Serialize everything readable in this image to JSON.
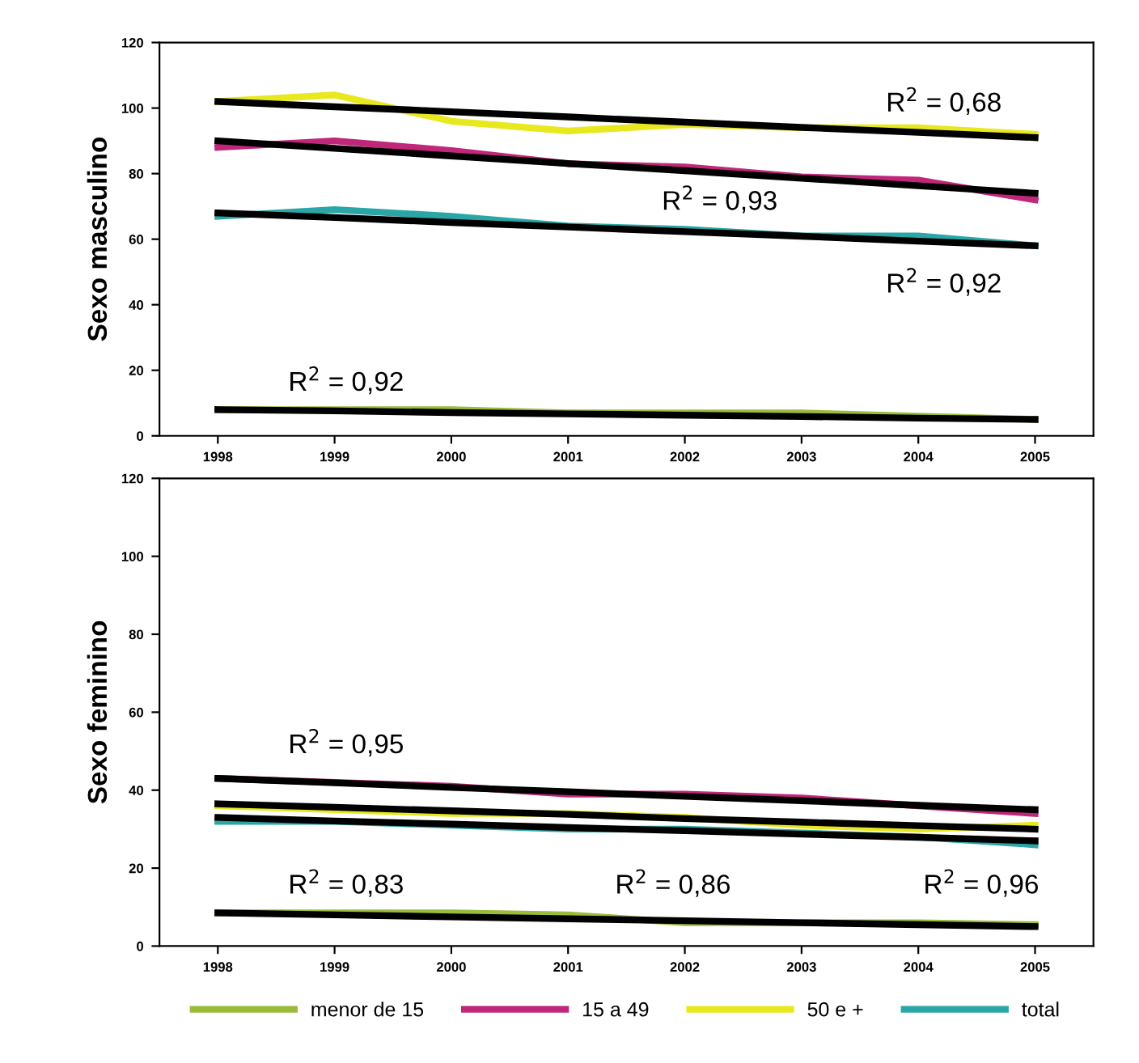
{
  "chart_data": [
    {
      "type": "line",
      "ylabel": "Sexo masculino",
      "categories": [
        "1998",
        "1999",
        "2000",
        "2001",
        "2002",
        "2003",
        "2004",
        "2005"
      ],
      "ylim": [
        0,
        120
      ],
      "yticks": [
        0,
        20,
        40,
        60,
        80,
        100,
        120
      ],
      "legend": false,
      "grid": false,
      "marker": "none",
      "series": [
        {
          "color": "#9bbb3b",
          "values": [
            8,
            8,
            8,
            7,
            7,
            7,
            6,
            5
          ]
        },
        {
          "color": "#c0267a",
          "values": [
            88,
            90,
            87,
            83,
            82,
            79,
            78,
            72
          ]
        },
        {
          "color": "#e8e81e",
          "values": [
            102,
            104,
            96,
            93,
            95,
            94,
            94,
            92
          ]
        },
        {
          "color": "#2aa6a6",
          "values": [
            67,
            69,
            67,
            64,
            63,
            61,
            61,
            58
          ]
        },
        {
          "color": "#000000",
          "values": [
            8,
            7.6,
            7.1,
            6.7,
            6.3,
            5.9,
            5.4,
            5
          ]
        },
        {
          "color": "#000000",
          "values": [
            90,
            87.7,
            85.4,
            83.1,
            80.9,
            78.6,
            76.3,
            74
          ]
        },
        {
          "color": "#000000",
          "values": [
            102,
            100.4,
            98.9,
            97.3,
            95.7,
            94.1,
            92.6,
            91
          ]
        },
        {
          "color": "#000000",
          "values": [
            68,
            66.6,
            65.1,
            63.7,
            62.3,
            60.9,
            59.4,
            58
          ]
        }
      ],
      "annotations": [
        "R$^{2}$ = 0,68",
        "R$^{2}$ = 0,93",
        "R$^{2}$ = 0,92",
        "R$^{2}$ = 0,92"
      ]
    },
    {
      "type": "line",
      "ylabel": "Sexo feminino",
      "categories": [
        "1998",
        "1999",
        "2000",
        "2001",
        "2002",
        "2003",
        "2004",
        "2005"
      ],
      "ylim": [
        0,
        120
      ],
      "yticks": [
        0,
        20,
        40,
        60,
        80,
        100,
        120
      ],
      "legend": "bottom",
      "grid": false,
      "marker": "none",
      "series": [
        {
          "name": "menor de 15",
          "color": "#9bbb3b",
          "values": [
            8.5,
            8.5,
            8.5,
            8,
            6,
            6,
            6,
            5.5
          ]
        },
        {
          "name": "15 a 49",
          "color": "#c0267a",
          "values": [
            43,
            42,
            41,
            39,
            39,
            38,
            36,
            34
          ]
        },
        {
          "name": "50 e +",
          "color": "#e8e81e",
          "values": [
            36,
            35,
            34,
            34,
            33,
            31,
            30,
            31
          ]
        },
        {
          "name": "total",
          "color": "#2aa6a6",
          "values": [
            32,
            32,
            31,
            30,
            30,
            29,
            28,
            26
          ]
        },
        {
          "color": "#000000",
          "values": [
            8.5,
            8,
            7.5,
            7,
            6.5,
            6,
            5.5,
            5
          ]
        },
        {
          "color": "#000000",
          "values": [
            43,
            41.9,
            40.7,
            39.6,
            38.4,
            37.3,
            36.1,
            35
          ]
        },
        {
          "color": "#000000",
          "values": [
            36.5,
            35.6,
            34.7,
            33.8,
            32.7,
            31.8,
            30.9,
            30
          ]
        },
        {
          "color": "#000000",
          "values": [
            33,
            32.1,
            31.3,
            30.4,
            29.6,
            28.7,
            27.9,
            27
          ]
        }
      ],
      "annotations": [
        "R$^{2}$ = 0,95",
        "R$^{2}$ = 0,86",
        "R$^{2}$ = 0,96",
        "R$^{2}$ = 0,83"
      ]
    }
  ]
}
